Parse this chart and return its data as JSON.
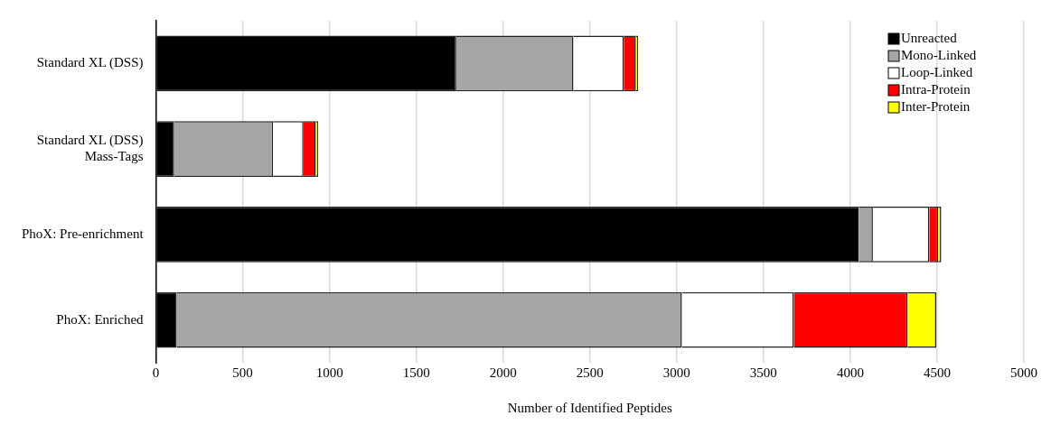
{
  "chart_data": {
    "type": "bar",
    "orientation": "horizontal",
    "stacked": true,
    "xlabel": "Number of Identified Peptides",
    "categories": [
      "Standard XL (DSS)",
      "Standard XL (DSS)\nMass-Tags",
      "PhoX: Pre-enrichment",
      "PhoX: Enriched"
    ],
    "series": [
      {
        "name": "Unreacted",
        "color": "#000000",
        "values": [
          1730,
          105,
          4050,
          120
        ]
      },
      {
        "name": "Mono-Linked",
        "color": "#a6a6a6",
        "values": [
          675,
          570,
          80,
          2910
        ]
      },
      {
        "name": "Loop-Linked",
        "color": "#ffffff",
        "values": [
          290,
          175,
          325,
          645
        ]
      },
      {
        "name": "Intra-Protein",
        "color": "#ff0000",
        "values": [
          70,
          71,
          51,
          655
        ]
      },
      {
        "name": "Inter-Protein",
        "color": "#ffff00",
        "values": [
          12,
          13,
          18,
          165
        ]
      }
    ],
    "xlim": [
      0,
      5000
    ],
    "xticks": [
      0,
      500,
      1000,
      1500,
      2000,
      2500,
      3000,
      3500,
      4000,
      4500,
      5000
    ],
    "grid": "x",
    "legend": "top right"
  }
}
